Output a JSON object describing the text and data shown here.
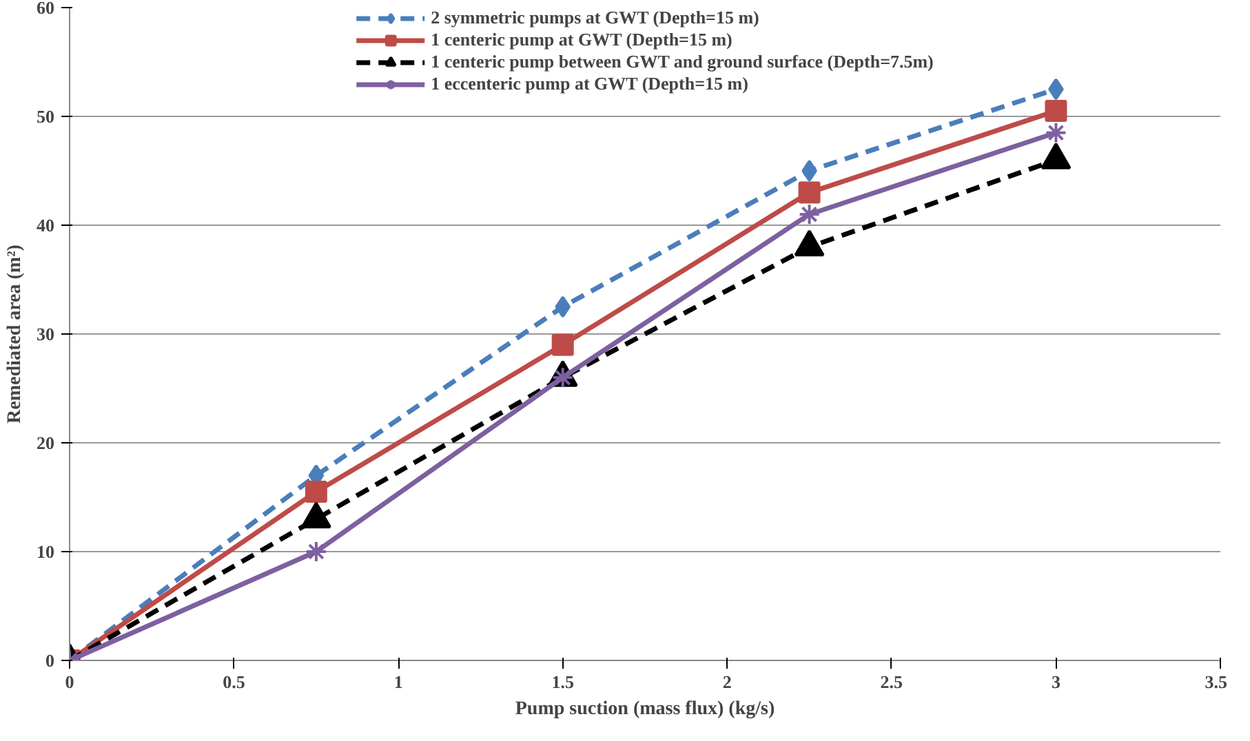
{
  "chart_data": {
    "type": "line",
    "xlabel": "Pump suction (mass flux) (kg/s)",
    "ylabel": "Remediated area (m²)",
    "x": [
      0,
      0.75,
      1.5,
      2.25,
      3
    ],
    "series": [
      {
        "name": "2 symmetric pumps at GWT (Depth=15 m)",
        "color": "#4a7ebb",
        "marker": "diamond",
        "line_style": "dashed",
        "values": [
          0,
          17,
          32.5,
          45,
          52.5
        ]
      },
      {
        "name": "1 centeric pump at GWT (Depth=15 m)",
        "color": "#be4b48",
        "marker": "square",
        "line_style": "solid",
        "values": [
          0,
          15.5,
          29,
          43,
          50.5
        ]
      },
      {
        "name": "1 centeric pump between GWT and ground surface (Depth=7.5m)",
        "color": "#000000",
        "marker": "triangle",
        "line_style": "dashed",
        "values": [
          0,
          13,
          26,
          38,
          46
        ]
      },
      {
        "name": "1 eccenteric pump at GWT (Depth=15 m)",
        "color": "#7d60a0",
        "marker": "cross",
        "line_style": "solid",
        "values": [
          0,
          10,
          26,
          41,
          48.5
        ]
      }
    ],
    "xlim": [
      0,
      3.5
    ],
    "xticks": [
      0,
      0.5,
      1,
      1.5,
      2,
      2.5,
      3,
      3.5
    ],
    "ylim": [
      0,
      60
    ],
    "yticks": [
      0,
      10,
      20,
      30,
      40,
      50,
      60
    ],
    "grid": "y",
    "legend": "top"
  }
}
